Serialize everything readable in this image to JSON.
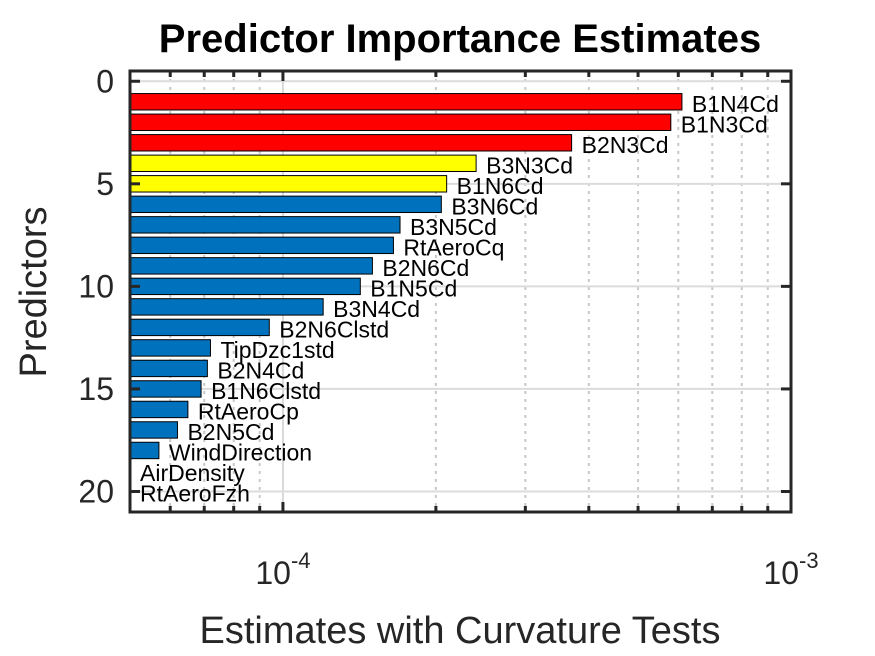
{
  "chart_data": {
    "type": "bar",
    "orientation": "horizontal",
    "title": "Predictor Importance Estimates",
    "xlabel": "Estimates with Curvature Tests",
    "ylabel": "Predictors",
    "xscale": "log",
    "xlim": [
      5e-05,
      0.001
    ],
    "ylim": [
      -0.5,
      21
    ],
    "xticks": [
      {
        "value": 0.0001,
        "base": "10",
        "exp": "-4"
      },
      {
        "value": 0.001,
        "base": "10",
        "exp": "-3"
      }
    ],
    "yticks": [
      0,
      5,
      10,
      15,
      20
    ],
    "grid": true,
    "categories": [
      "B1N4Cd",
      "B1N3Cd",
      "B2N3Cd",
      "B3N3Cd",
      "B1N6Cd",
      "B3N6Cd",
      "B3N5Cd",
      "RtAeroCq",
      "B2N6Cd",
      "B1N5Cd",
      "B3N4Cd",
      "B2N6Clstd",
      "TipDzc1std",
      "B2N4Cd",
      "B1N6Clstd",
      "RtAeroCp",
      "B2N5Cd",
      "WindDirection",
      "AirDensity",
      "RtAeroFzh"
    ],
    "positions": [
      1,
      2,
      3,
      4,
      5,
      6,
      7,
      8,
      9,
      10,
      11,
      12,
      13,
      14,
      15,
      16,
      17,
      18,
      19,
      20
    ],
    "values": [
      0.00061,
      0.00058,
      0.00037,
      0.00024,
      0.00021,
      0.000205,
      0.00017,
      0.000165,
      0.00015,
      0.000142,
      0.00012,
      9.4e-05,
      7.2e-05,
      7.1e-05,
      6.9e-05,
      6.5e-05,
      6.2e-05,
      5.7e-05,
      5e-05,
      5e-05
    ],
    "colors": [
      "#ff0000",
      "#ff0000",
      "#ff0000",
      "#ffff00",
      "#ffff00",
      "#0072bd",
      "#0072bd",
      "#0072bd",
      "#0072bd",
      "#0072bd",
      "#0072bd",
      "#0072bd",
      "#0072bd",
      "#0072bd",
      "#0072bd",
      "#0072bd",
      "#0072bd",
      "#0072bd",
      "#0072bd",
      "#0072bd"
    ],
    "legend": "none"
  }
}
